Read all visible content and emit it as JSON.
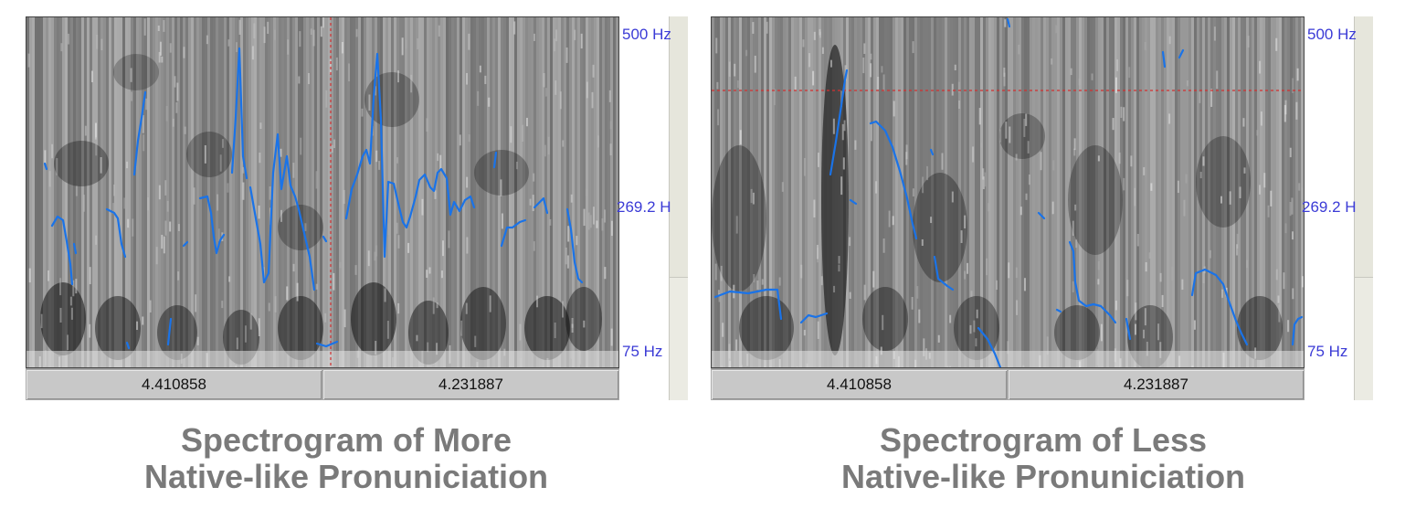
{
  "panels": [
    {
      "freq_labels": {
        "top": "500 Hz",
        "mid": "269.2 H",
        "bottom": "75 Hz"
      },
      "time_labels": [
        "4.410858",
        "4.231887"
      ],
      "caption": [
        "Spectrogram of More",
        "Native-like Pronuniciation"
      ]
    },
    {
      "freq_labels": {
        "top": "500 Hz",
        "mid": "269.2 H",
        "bottom": "75 Hz"
      },
      "time_labels": [
        "4.410858",
        "4.231887"
      ],
      "caption": [
        "Spectrogram of Less",
        "Native-like Pronuniciation"
      ]
    }
  ],
  "colors": {
    "pitch_track": "#1a73e8",
    "cursor_line": "#d23030",
    "freq_label": "#3b3bd6",
    "caption": "#7a7a7a"
  }
}
